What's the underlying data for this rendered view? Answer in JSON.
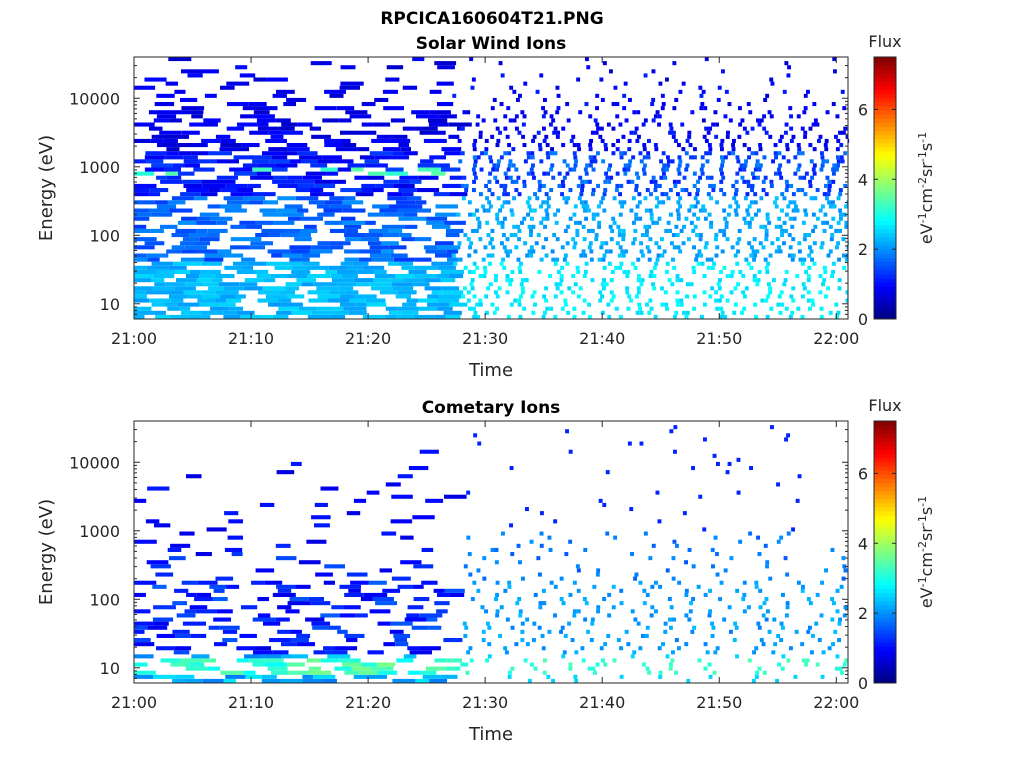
{
  "figure_title": "RPCICA160604T21.PNG",
  "chart_data": [
    {
      "type": "heatmap",
      "title": "Solar Wind Ions",
      "xlabel": "Time",
      "ylabel": "Energy (eV)",
      "xlim": [
        "21:00",
        "22:01"
      ],
      "ylim": [
        6,
        40000
      ],
      "y_scale": "log",
      "x_ticks": [
        "21:00",
        "21:10",
        "21:20",
        "21:30",
        "21:40",
        "21:50",
        "22:00"
      ],
      "y_ticks": [
        10,
        100,
        1000,
        10000
      ],
      "y_tick_labels": [
        "10",
        "100",
        "1000",
        "10000"
      ],
      "colorbar": {
        "title": "Flux",
        "label": "eV-1cm-2sr-1s-1",
        "range": [
          0,
          7.5
        ],
        "ticks": [
          "0",
          "2",
          "4",
          "6"
        ],
        "colormap": "jet"
      },
      "description_values": {
        "dense_region_end": "21:27",
        "peak_energy_band_eV": 850,
        "peak_flux_approx": 3.8,
        "low_energy_flux_approx": 2.3,
        "high_energy_flux_approx": 0.8
      }
    },
    {
      "type": "heatmap",
      "title": "Cometary Ions",
      "xlabel": "Time",
      "ylabel": "Energy (eV)",
      "xlim": [
        "21:00",
        "22:01"
      ],
      "ylim": [
        6,
        40000
      ],
      "y_scale": "log",
      "x_ticks": [
        "21:00",
        "21:10",
        "21:20",
        "21:30",
        "21:40",
        "21:50",
        "22:00"
      ],
      "y_ticks": [
        10,
        100,
        1000,
        10000
      ],
      "y_tick_labels": [
        "10",
        "100",
        "1000",
        "10000"
      ],
      "colorbar": {
        "title": "Flux",
        "label": "eV-1cm-2sr-1s-1",
        "range": [
          0,
          7.5
        ],
        "ticks": [
          "0",
          "2",
          "4",
          "6"
        ],
        "colormap": "jet"
      },
      "description_values": {
        "dense_region_end": "21:27",
        "low_energy_band_eV": 11,
        "low_energy_flux_approx": 3.7,
        "mid_energy_flux_approx": 1.2
      }
    }
  ]
}
